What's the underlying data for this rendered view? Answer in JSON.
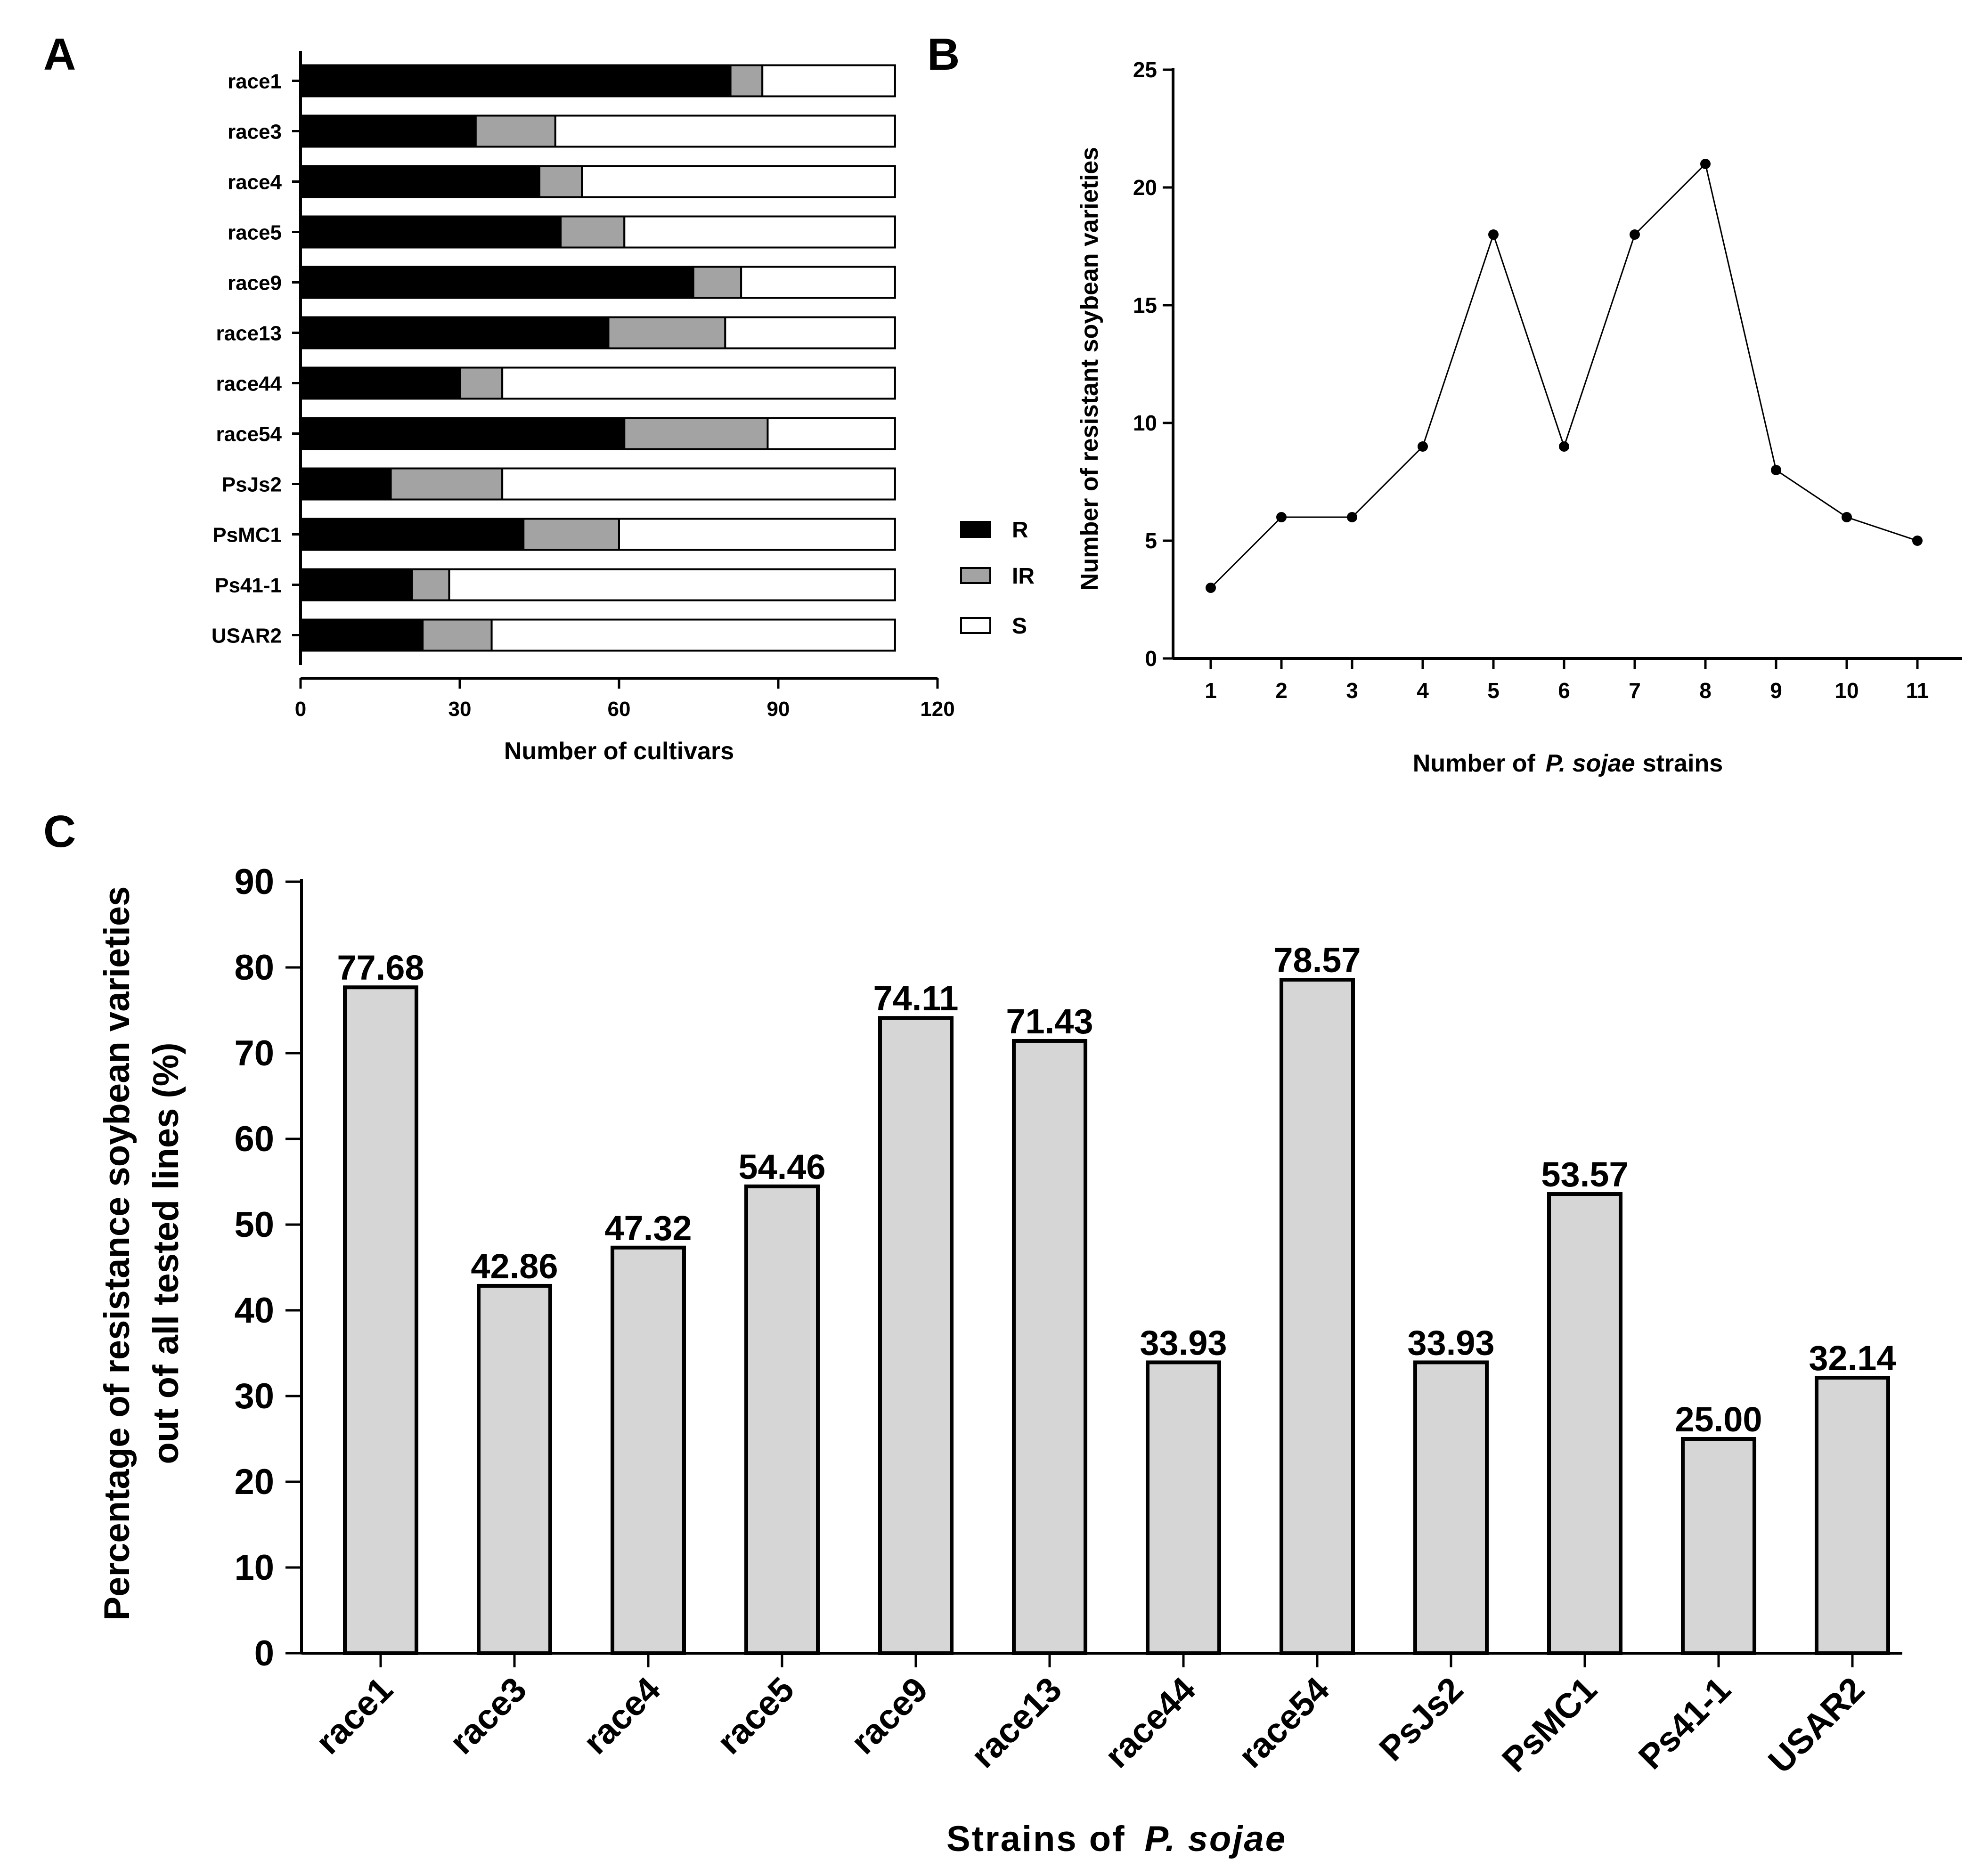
{
  "colors": {
    "resistant": "#000000",
    "intermediate": "#a3a3a3",
    "susceptible": "#ffffff",
    "barC": "#d6d6d6"
  },
  "chart_data": [
    {
      "panel": "A",
      "type": "bar",
      "orientation": "horizontal",
      "stacked": true,
      "categories": [
        "race1",
        "race3",
        "race4",
        "race5",
        "race9",
        "race13",
        "race44",
        "race54",
        "PsJs2",
        "PsMC1",
        "Ps41-1",
        "USAR2"
      ],
      "series": [
        {
          "name": "R",
          "values": [
            81,
            33,
            45,
            49,
            74,
            58,
            30,
            61,
            17,
            42,
            21,
            23
          ]
        },
        {
          "name": "IR",
          "values": [
            6,
            15,
            8,
            12,
            9,
            22,
            8,
            27,
            21,
            18,
            7,
            13
          ]
        },
        {
          "name": "S",
          "values": [
            25,
            64,
            59,
            51,
            29,
            32,
            74,
            24,
            74,
            52,
            84,
            76
          ]
        }
      ],
      "xlim": [
        0,
        120
      ],
      "xticks": [
        0,
        30,
        60,
        90,
        120
      ],
      "xlabel": "Number of cultivars",
      "legend": [
        "R",
        "IR",
        "S"
      ],
      "legend_position": "right"
    },
    {
      "panel": "B",
      "type": "line",
      "x": [
        1,
        2,
        3,
        4,
        5,
        6,
        7,
        8,
        9,
        10,
        11
      ],
      "y": [
        3,
        6,
        6,
        9,
        18,
        9,
        18,
        21,
        8,
        6,
        5
      ],
      "ylim": [
        0,
        25
      ],
      "yticks": [
        0,
        5,
        10,
        15,
        20,
        25
      ],
      "ylabel": "Number of resistant soybean varieties",
      "xlabel_prefix": "Number of",
      "xlabel_italic": "P. sojae",
      "xlabel_suffix": "strains"
    },
    {
      "panel": "C",
      "type": "bar",
      "categories": [
        "race1",
        "race3",
        "race4",
        "race5",
        "race9",
        "race13",
        "race44",
        "race54",
        "PsJs2",
        "PsMC1",
        "Ps41-1",
        "USAR2"
      ],
      "values": [
        77.68,
        42.86,
        47.32,
        54.46,
        74.11,
        71.43,
        33.93,
        78.57,
        33.93,
        53.57,
        25.0,
        32.14
      ],
      "data_labels": [
        "77.68",
        "42.86",
        "47.32",
        "54.46",
        "74.11",
        "71.43",
        "33.93",
        "78.57",
        "33.93",
        "53.57",
        "25.00",
        "32.14"
      ],
      "ylim": [
        0,
        90
      ],
      "yticks": [
        0,
        10,
        20,
        30,
        40,
        50,
        60,
        70,
        80,
        90
      ],
      "ylabel_line1": "Percentage of resistance soybean varieties",
      "ylabel_line2": "out of all tested lines (%)",
      "xlabel_prefix": "Strains of",
      "xlabel_italic": "P. sojae"
    }
  ],
  "panels": {
    "a": "A",
    "b": "B",
    "c": "C"
  }
}
